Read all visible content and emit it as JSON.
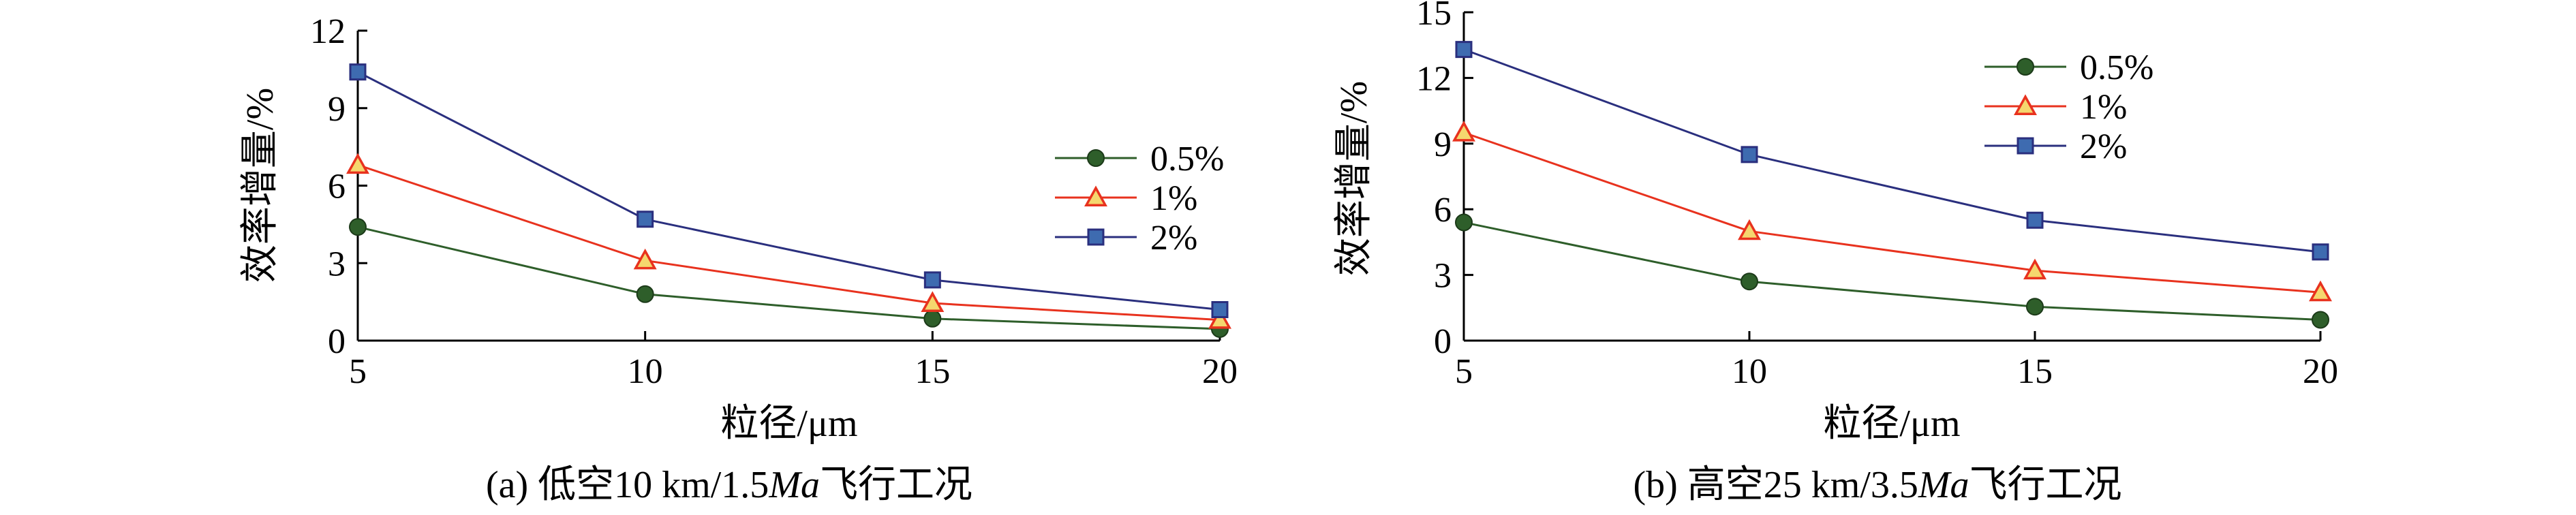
{
  "chart_data": [
    {
      "type": "line",
      "caption": {
        "prefix": "(a) 低空10 km/1.5",
        "italic": "Ma",
        "suffix": "飞行工况"
      },
      "xlabel": "粒径/μm",
      "ylabel": "效率增量/%",
      "x": [
        5,
        10,
        15,
        20
      ],
      "xlim": [
        5,
        20
      ],
      "ylim": [
        0,
        12
      ],
      "xticks": [
        "5",
        "10",
        "15",
        "20"
      ],
      "yticks": [
        "0",
        "3",
        "6",
        "9",
        "12"
      ],
      "legend_position": "right-center",
      "series": [
        {
          "name": "0.5%",
          "marker": "circle",
          "color": "#2e5e2a",
          "values": [
            4.4,
            1.8,
            0.85,
            0.45
          ]
        },
        {
          "name": "1%",
          "marker": "triangle",
          "color": "#e8321e",
          "values": [
            6.8,
            3.1,
            1.45,
            0.8
          ]
        },
        {
          "name": "2%",
          "marker": "square",
          "color": "#2a2f7e",
          "values": [
            10.4,
            4.7,
            2.35,
            1.2
          ]
        }
      ]
    },
    {
      "type": "line",
      "caption": {
        "prefix": "(b) 高空25 km/3.5",
        "italic": "Ma",
        "suffix": "飞行工况"
      },
      "xlabel": "粒径/μm",
      "ylabel": "效率增量/%",
      "x": [
        5,
        10,
        15,
        20
      ],
      "xlim": [
        5,
        20
      ],
      "ylim": [
        0,
        15
      ],
      "xticks": [
        "5",
        "10",
        "15",
        "20"
      ],
      "yticks": [
        "0",
        "3",
        "6",
        "9",
        "12",
        "15"
      ],
      "legend_position": "top-right",
      "series": [
        {
          "name": "0.5%",
          "marker": "circle",
          "color": "#2e5e2a",
          "values": [
            5.4,
            2.7,
            1.55,
            0.95
          ]
        },
        {
          "name": "1%",
          "marker": "triangle",
          "color": "#e8321e",
          "values": [
            9.5,
            5.0,
            3.2,
            2.2
          ]
        },
        {
          "name": "2%",
          "marker": "square",
          "color": "#2a2f7e",
          "values": [
            13.3,
            8.5,
            5.5,
            4.05
          ]
        }
      ]
    }
  ]
}
